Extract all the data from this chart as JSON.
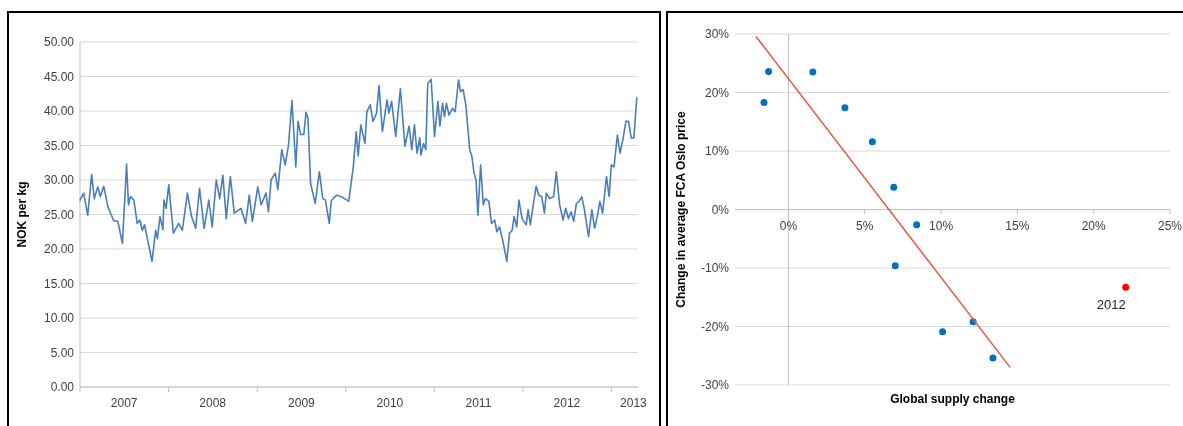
{
  "chart_data": [
    {
      "type": "line",
      "ylabel": "NOK per kg",
      "color": "#4a7ebb",
      "grid": "y",
      "xlim": [
        "2007-01-01",
        "2013-04-20"
      ],
      "ylim": [
        0,
        50
      ],
      "yticks": [
        {
          "value": 0,
          "label": "0.00"
        },
        {
          "value": 5,
          "label": "5.00"
        },
        {
          "value": 10,
          "label": "10.00"
        },
        {
          "value": 15,
          "label": "15.00"
        },
        {
          "value": 20,
          "label": "20.00"
        },
        {
          "value": 25,
          "label": "25.00"
        },
        {
          "value": 30,
          "label": "30.00"
        },
        {
          "value": 35,
          "label": "35.00"
        },
        {
          "value": 40,
          "label": "40.00"
        },
        {
          "value": 45,
          "label": "45.00"
        },
        {
          "value": 50,
          "label": "50.00"
        }
      ],
      "xticks": [
        {
          "value": "2007-01-01",
          "label": null
        },
        {
          "value": "2007-07-02",
          "label": "2007"
        },
        {
          "value": "2008-01-01",
          "label": null
        },
        {
          "value": "2008-07-01",
          "label": "2008"
        },
        {
          "value": "2009-01-01",
          "label": null
        },
        {
          "value": "2009-07-02",
          "label": "2009"
        },
        {
          "value": "2010-01-01",
          "label": null
        },
        {
          "value": "2010-07-02",
          "label": "2010"
        },
        {
          "value": "2011-01-01",
          "label": null
        },
        {
          "value": "2011-07-02",
          "label": "2011"
        },
        {
          "value": "2012-01-01",
          "label": null
        },
        {
          "value": "2012-07-01",
          "label": "2012"
        },
        {
          "value": "2013-01-01",
          "label": null
        },
        {
          "value": "2013-04-01",
          "label": "2013"
        }
      ],
      "x": [
        "2007-01-01",
        "2007-01-16",
        "2007-02-02",
        "2007-02-18",
        "2007-03-01",
        "2007-03-15",
        "2007-03-26",
        "2007-04-09",
        "2007-04-26",
        "2007-05-20",
        "2007-06-06",
        "2007-06-25",
        "2007-07-12",
        "2007-07-20",
        "2007-07-28",
        "2007-08-11",
        "2007-08-25",
        "2007-09-05",
        "2007-09-15",
        "2007-09-24",
        "2007-10-25",
        "2007-11-09",
        "2007-11-16",
        "2007-11-27",
        "2007-12-09",
        "2007-12-13",
        "2007-12-22",
        "2008-01-02",
        "2008-01-21",
        "2008-02-12",
        "2008-02-27",
        "2008-03-19",
        "2008-04-05",
        "2008-04-22",
        "2008-05-08",
        "2008-05-27",
        "2008-06-15",
        "2008-06-29",
        "2008-07-16",
        "2008-07-30",
        "2008-08-12",
        "2008-08-26",
        "2008-09-12",
        "2008-09-28",
        "2008-10-26",
        "2008-11-14",
        "2008-11-29",
        "2008-12-12",
        "2009-01-03",
        "2009-01-17",
        "2009-02-06",
        "2009-02-16",
        "2009-02-27",
        "2009-03-16",
        "2009-03-27",
        "2009-04-12",
        "2009-04-26",
        "2009-05-10",
        "2009-05-24",
        "2009-06-09",
        "2009-06-18",
        "2009-06-29",
        "2009-07-12",
        "2009-07-21",
        "2009-07-29",
        "2009-08-09",
        "2009-08-28",
        "2009-09-14",
        "2009-09-28",
        "2009-10-09",
        "2009-10-25",
        "2009-11-02",
        "2009-11-24",
        "2009-12-14",
        "2010-01-13",
        "2010-02-01",
        "2010-02-13",
        "2010-02-21",
        "2010-03-04",
        "2010-03-21",
        "2010-03-29",
        "2010-04-12",
        "2010-04-23",
        "2010-05-08",
        "2010-05-18",
        "2010-06-01",
        "2010-06-20",
        "2010-06-28",
        "2010-07-09",
        "2010-07-26",
        "2010-08-14",
        "2010-09-02",
        "2010-09-19",
        "2010-09-30",
        "2010-10-11",
        "2010-10-22",
        "2010-11-02",
        "2010-11-07",
        "2010-11-18",
        "2010-11-27",
        "2010-12-05",
        "2010-12-19",
        "2011-01-02",
        "2011-01-16",
        "2011-01-24",
        "2011-02-04",
        "2011-02-12",
        "2011-02-20",
        "2011-03-03",
        "2011-03-17",
        "2011-03-28",
        "2011-04-11",
        "2011-04-19",
        "2011-04-30",
        "2011-05-11",
        "2011-05-27",
        "2011-06-05",
        "2011-06-14",
        "2011-06-22",
        "2011-06-30",
        "2011-07-11",
        "2011-07-22",
        "2011-07-31",
        "2011-08-14",
        "2011-08-25",
        "2011-09-07",
        "2011-09-16",
        "2011-09-27",
        "2011-10-10",
        "2011-10-27",
        "2011-11-07",
        "2011-11-18",
        "2011-11-26",
        "2011-12-07",
        "2011-12-16",
        "2011-12-29",
        "2012-01-15",
        "2012-01-23",
        "2012-02-01",
        "2012-02-14",
        "2012-02-25",
        "2012-03-07",
        "2012-03-19",
        "2012-03-30",
        "2012-04-07",
        "2012-04-21",
        "2012-05-07",
        "2012-05-18",
        "2012-06-01",
        "2012-06-15",
        "2012-06-26",
        "2012-07-07",
        "2012-07-18",
        "2012-07-29",
        "2012-08-09",
        "2012-08-20",
        "2012-08-31",
        "2012-09-11",
        "2012-09-28",
        "2012-10-12",
        "2012-10-23",
        "2012-11-03",
        "2012-11-14",
        "2012-11-25",
        "2012-12-11",
        "2012-12-22",
        "2012-12-31",
        "2013-01-11",
        "2013-01-25",
        "2013-02-05",
        "2013-02-18",
        "2013-03-01",
        "2013-03-12",
        "2013-03-23",
        "2013-04-03",
        "2013-04-15"
      ],
      "values": [
        27.1,
        28.1,
        24.9,
        30.8,
        27.3,
        29.0,
        27.6,
        29.1,
        26.1,
        24.1,
        24.0,
        20.8,
        32.3,
        26.4,
        27.6,
        27.1,
        23.7,
        24.2,
        22.7,
        23.5,
        18.2,
        22.7,
        21.5,
        24.7,
        22.8,
        27.1,
        25.9,
        29.3,
        22.3,
        23.7,
        22.7,
        28.1,
        24.7,
        23.0,
        28.8,
        23.0,
        27.1,
        23.2,
        30.0,
        27.3,
        30.7,
        24.4,
        30.5,
        25.2,
        25.9,
        23.7,
        27.8,
        24.0,
        29.0,
        26.4,
        28.1,
        25.4,
        30.0,
        31.0,
        28.6,
        34.4,
        32.2,
        35.1,
        41.5,
        31.9,
        38.5,
        36.6,
        36.6,
        39.8,
        39.0,
        29.5,
        26.6,
        31.2,
        27.3,
        27.1,
        23.7,
        27.0,
        27.8,
        27.6,
        26.9,
        31.9,
        37.0,
        33.5,
        38.0,
        35.3,
        39.9,
        40.9,
        38.5,
        39.7,
        43.7,
        37.0,
        41.6,
        39.7,
        41.4,
        36.3,
        43.2,
        34.9,
        37.8,
        34.4,
        38.0,
        33.9,
        36.1,
        33.6,
        35.3,
        34.4,
        44.0,
        44.6,
        36.3,
        41.4,
        37.8,
        41.1,
        39.2,
        41.1,
        39.4,
        40.4,
        39.9,
        44.5,
        42.8,
        43.1,
        40.9,
        34.4,
        33.4,
        31.0,
        30.0,
        24.9,
        32.2,
        26.4,
        27.3,
        26.9,
        23.7,
        24.2,
        22.5,
        23.2,
        21.3,
        18.2,
        22.3,
        22.7,
        24.7,
        23.2,
        27.1,
        24.4,
        23.5,
        25.7,
        23.5,
        26.6,
        29.1,
        27.8,
        27.6,
        25.2,
        28.1,
        27.3,
        27.6,
        31.2,
        26.4,
        24.2,
        25.9,
        24.4,
        25.4,
        24.0,
        26.6,
        26.9,
        27.6,
        25.7,
        21.8,
        25.7,
        23.0,
        24.7,
        26.9,
        25.2,
        30.5,
        27.6,
        32.2,
        31.9,
        36.5,
        33.9,
        36.1,
        38.5,
        38.5,
        36.1,
        36.1,
        41.9
      ]
    },
    {
      "type": "scatter",
      "xlabel": "Global supply change",
      "ylabel": "Change in average FCA Oslo price",
      "grid": "y",
      "xlim": [
        -3.5,
        25
      ],
      "ylim": [
        -30,
        30
      ],
      "xticks": [
        {
          "value": 0,
          "label": "0%"
        },
        {
          "value": 5,
          "label": "5%"
        },
        {
          "value": 10,
          "label": "10%"
        },
        {
          "value": 15,
          "label": "15%"
        },
        {
          "value": 20,
          "label": "20%"
        },
        {
          "value": 25,
          "label": "25%"
        }
      ],
      "yticks": [
        {
          "value": -30,
          "label": "-30%"
        },
        {
          "value": -20,
          "label": "-20%"
        },
        {
          "value": -10,
          "label": "-10%"
        },
        {
          "value": 0,
          "label": "0%"
        },
        {
          "value": 10,
          "label": "10%"
        },
        {
          "value": 20,
          "label": "20%"
        },
        {
          "value": 30,
          "label": "30%"
        }
      ],
      "annotations": [
        {
          "text": "2012",
          "x": 22.1,
          "y": -13.3
        }
      ],
      "series": [
        {
          "marker": "circle",
          "color": "#0070c0",
          "x": [
            -1.3,
            -1.6,
            1.6,
            3.7,
            5.5,
            6.9,
            8.4,
            7.0,
            10.1,
            12.1,
            13.4
          ],
          "values": [
            23.6,
            18.3,
            23.5,
            17.4,
            11.6,
            3.8,
            -2.6,
            -9.6,
            -20.9,
            -19.2,
            -25.4
          ]
        },
        {
          "marker": "circle",
          "color": "#ff0000",
          "x": [
            22.1
          ],
          "values": [
            -13.3
          ]
        },
        {
          "type": "line",
          "color": "#e0604c",
          "x": [
            -2.1,
            14.5
          ],
          "values": [
            29.5,
            -26.9
          ]
        }
      ]
    }
  ]
}
